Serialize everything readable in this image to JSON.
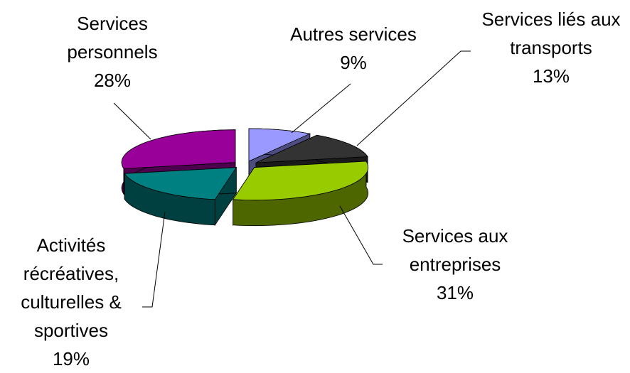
{
  "chart_data": {
    "type": "pie",
    "categories": [
      "Autres services",
      "Services liés aux transports",
      "Services aux entreprises",
      "Activités récréatives, culturelles & sportives",
      "Services personnels"
    ],
    "values": [
      9,
      13,
      31,
      19,
      28
    ],
    "value_labels": [
      "9%",
      "13%",
      "31%",
      "19%",
      "28%"
    ],
    "colors": [
      "#9999ff",
      "#333333",
      "#99cc00",
      "#008080",
      "#990099"
    ],
    "three_d": true,
    "exploded": true
  }
}
